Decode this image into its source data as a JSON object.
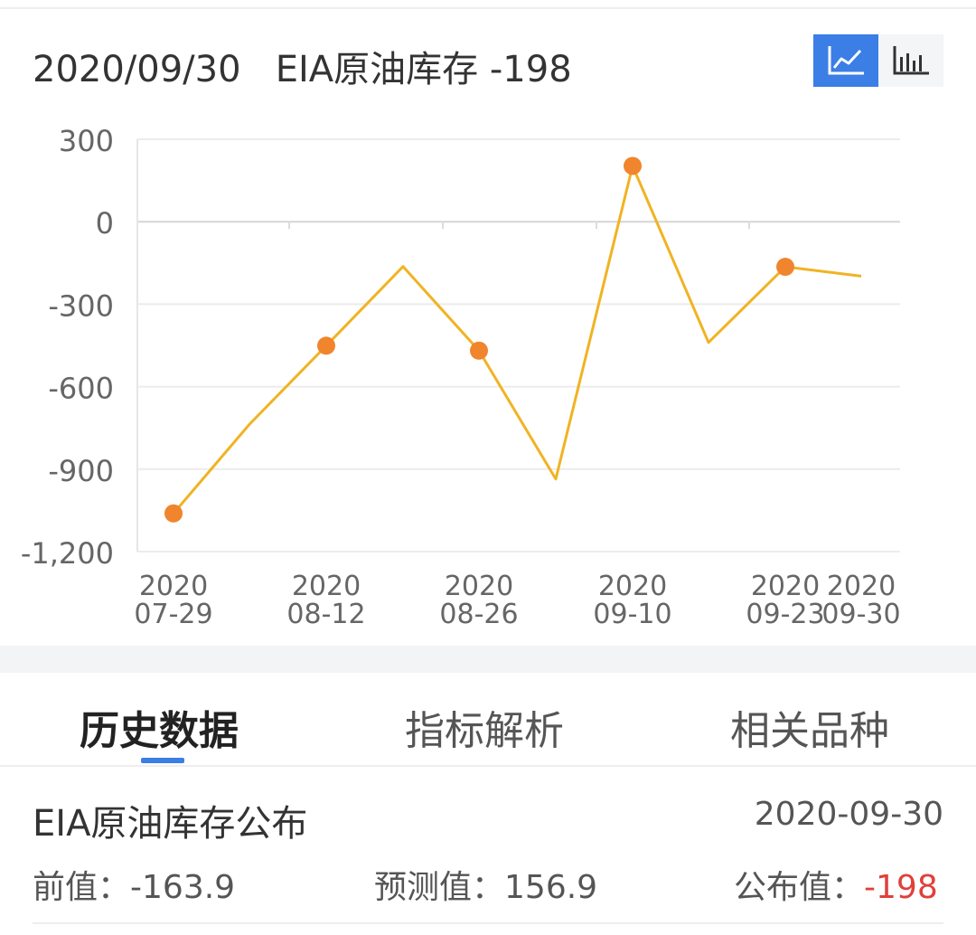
{
  "header": {
    "date": "2020/09/30",
    "indicator": "EIA原油库存",
    "value": "-198"
  },
  "toggle": {
    "line_icon": "line-chart-icon",
    "bar_icon": "bar-chart-icon",
    "active": "line"
  },
  "chart_data": {
    "type": "line",
    "title": "",
    "xlabel": "",
    "ylabel": "",
    "ylim": [
      -1200,
      300
    ],
    "yticks": [
      "300",
      "0",
      "-300",
      "-600",
      "-900",
      "-1,200"
    ],
    "ytick_values": [
      300,
      0,
      -300,
      -600,
      -900,
      -1200
    ],
    "x_labeled": [
      {
        "year": "2020",
        "md": "07-29"
      },
      {
        "year": "2020",
        "md": "08-12"
      },
      {
        "year": "2020",
        "md": "08-26"
      },
      {
        "year": "2020",
        "md": "09-10"
      },
      {
        "year": "2020",
        "md": "09-23"
      },
      {
        "year": "2020",
        "md": "09-30"
      }
    ],
    "x": [
      "2020-07-29",
      "2020-08-05",
      "2020-08-12",
      "2020-08-19",
      "2020-08-26",
      "2020-09-02",
      "2020-09-10",
      "2020-09-16",
      "2020-09-23",
      "2020-09-30"
    ],
    "series": [
      {
        "values": [
          -1061,
          -737,
          -451,
          -163,
          -469,
          -936,
          203,
          -439,
          -164,
          -198
        ],
        "markers": [
          true,
          false,
          true,
          false,
          true,
          false,
          true,
          false,
          true,
          false
        ]
      }
    ],
    "line_color": "#f0b323",
    "marker_color": "#f0852d",
    "grid": true
  },
  "tabs": [
    {
      "label": "历史数据",
      "active": true
    },
    {
      "label": "指标解析",
      "active": false
    },
    {
      "label": "相关品种",
      "active": false
    }
  ],
  "event": {
    "title": "EIA原油库存公布",
    "date": "2020-09-30",
    "previous_label": "前值：",
    "previous_value": "-163.9",
    "forecast_label": "预测值：",
    "forecast_value": "156.9",
    "actual_label": "公布值：",
    "actual_value": "-198"
  },
  "colors": {
    "accent": "#3b7ee6",
    "negative": "#e0403a"
  }
}
